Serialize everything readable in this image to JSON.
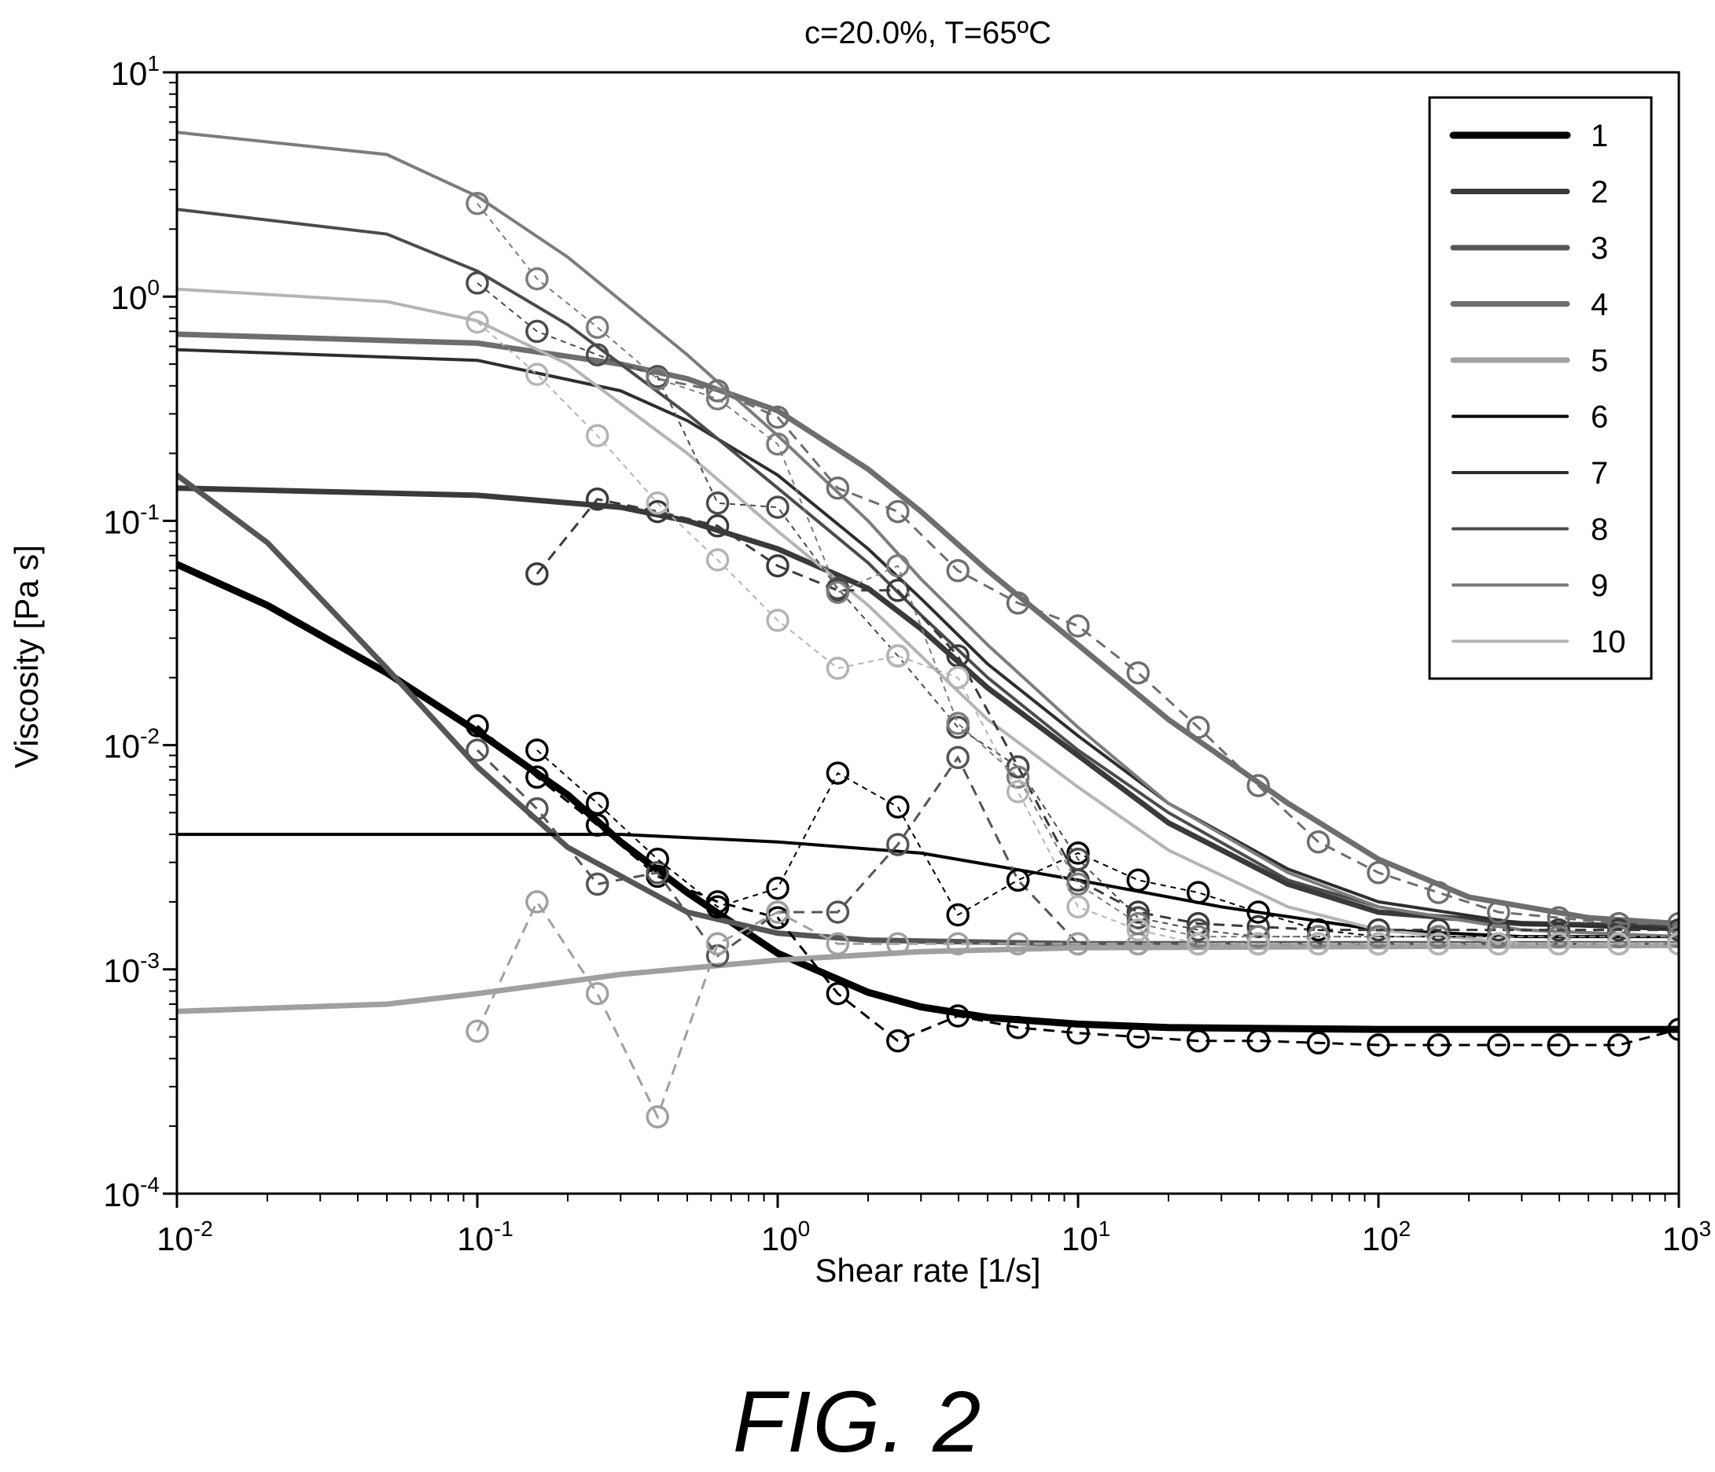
{
  "figure_caption": "FIG. 2",
  "chart_data": {
    "type": "line",
    "title": "c=20.0%, T=65ºC",
    "xlabel": "Shear rate [1/s]",
    "ylabel": "Viscosity [Pa s]",
    "x_scale": "log",
    "y_scale": "log",
    "xlim": [
      0.01,
      1000
    ],
    "ylim": [
      0.0001,
      10
    ],
    "x_ticks": [
      {
        "base": "10",
        "exp": "-2"
      },
      {
        "base": "10",
        "exp": "-1"
      },
      {
        "base": "10",
        "exp": "0"
      },
      {
        "base": "10",
        "exp": "1"
      },
      {
        "base": "10",
        "exp": "2"
      },
      {
        "base": "10",
        "exp": "3"
      }
    ],
    "y_ticks": [
      {
        "base": "10",
        "exp": "-4"
      },
      {
        "base": "10",
        "exp": "-3"
      },
      {
        "base": "10",
        "exp": "-2"
      },
      {
        "base": "10",
        "exp": "-1"
      },
      {
        "base": "10",
        "exp": "0"
      },
      {
        "base": "10",
        "exp": "1"
      }
    ],
    "grid": false,
    "legend_position": "top-right",
    "marker": "open-circle",
    "measurement_x": [
      0.1,
      0.158,
      0.251,
      0.398,
      0.631,
      1.0,
      1.585,
      2.512,
      3.981,
      6.31,
      10,
      15.85,
      25.12,
      39.81,
      63.1,
      100,
      158.5,
      251.2,
      398.1,
      631,
      1000
    ],
    "series": [
      {
        "name": "1",
        "color": "#000000",
        "fit": [
          [
            0.01,
            0.064
          ],
          [
            0.02,
            0.042
          ],
          [
            0.05,
            0.021
          ],
          [
            0.1,
            0.0115
          ],
          [
            0.2,
            0.006
          ],
          [
            0.3,
            0.0037
          ],
          [
            0.5,
            0.0022
          ],
          [
            1,
            0.00118
          ],
          [
            2,
            0.00079
          ],
          [
            3,
            0.00068
          ],
          [
            5,
            0.00061
          ],
          [
            10,
            0.00057
          ],
          [
            20,
            0.00055
          ],
          [
            100,
            0.00054
          ],
          [
            1000,
            0.00054
          ]
        ],
        "measured": [
          0.0122,
          0.0072,
          0.0044,
          0.0026,
          0.002,
          0.0017,
          0.00078,
          0.00048,
          0.00062,
          0.00055,
          0.00052,
          0.0005,
          0.00048,
          0.00048,
          0.00047,
          0.00046,
          0.00046,
          0.00046,
          0.00046,
          0.00046,
          0.00054
        ]
      },
      {
        "name": "2",
        "color": "#3a3a3a",
        "fit": [
          [
            0.01,
            0.14
          ],
          [
            0.1,
            0.13
          ],
          [
            0.3,
            0.115
          ],
          [
            0.5,
            0.1
          ],
          [
            1,
            0.075
          ],
          [
            2,
            0.05
          ],
          [
            3,
            0.033
          ],
          [
            5,
            0.018
          ],
          [
            10,
            0.009
          ],
          [
            20,
            0.0045
          ],
          [
            50,
            0.0024
          ],
          [
            100,
            0.0018
          ],
          [
            300,
            0.0016
          ],
          [
            1000,
            0.00155
          ]
        ],
        "measured": [
          null,
          0.058,
          0.125,
          0.11,
          0.095,
          0.063,
          0.049,
          0.049,
          0.025,
          0.008,
          0.0025,
          0.0018,
          0.0016,
          0.00155,
          0.0015,
          0.0015,
          0.0015,
          0.0015,
          0.0015,
          0.0015,
          0.0015
        ]
      },
      {
        "name": "3",
        "color": "#555555",
        "fit": [
          [
            0.01,
            0.16
          ],
          [
            0.02,
            0.08
          ],
          [
            0.05,
            0.022
          ],
          [
            0.1,
            0.008
          ],
          [
            0.2,
            0.0035
          ],
          [
            0.5,
            0.0018
          ],
          [
            1,
            0.00145
          ],
          [
            2,
            0.00135
          ],
          [
            10,
            0.0013
          ],
          [
            1000,
            0.0013
          ]
        ],
        "measured": [
          0.0095,
          0.0052,
          0.0024,
          0.0027,
          0.00115,
          0.0018,
          0.0018,
          0.0036,
          0.0088,
          0.0025,
          0.0013,
          0.0013,
          0.0013,
          0.0013,
          0.0013,
          0.0013,
          0.0013,
          0.0013,
          0.0013,
          0.0013,
          0.0013
        ]
      },
      {
        "name": "4",
        "color": "#6e6e6e",
        "fit": [
          [
            0.01,
            0.68
          ],
          [
            0.1,
            0.62
          ],
          [
            0.3,
            0.5
          ],
          [
            0.5,
            0.43
          ],
          [
            1,
            0.31
          ],
          [
            2,
            0.17
          ],
          [
            3,
            0.11
          ],
          [
            5,
            0.06
          ],
          [
            10,
            0.028
          ],
          [
            20,
            0.013
          ],
          [
            50,
            0.0055
          ],
          [
            100,
            0.0031
          ],
          [
            200,
            0.0021
          ],
          [
            500,
            0.0017
          ],
          [
            1000,
            0.0016
          ]
        ],
        "measured": [
          null,
          null,
          null,
          0.43,
          0.38,
          0.29,
          0.14,
          0.11,
          0.06,
          0.043,
          0.034,
          0.021,
          0.012,
          0.0066,
          0.0037,
          0.0027,
          0.0022,
          0.0018,
          0.0017,
          0.0016,
          0.0016
        ]
      },
      {
        "name": "5",
        "color": "#a0a0a0",
        "fit": [
          [
            0.01,
            0.00065
          ],
          [
            0.05,
            0.0007
          ],
          [
            0.1,
            0.00078
          ],
          [
            0.3,
            0.00095
          ],
          [
            1,
            0.0011
          ],
          [
            3,
            0.0012
          ],
          [
            10,
            0.00125
          ],
          [
            1000,
            0.00128
          ]
        ],
        "measured": [
          0.00053,
          0.002,
          0.00078,
          0.00022,
          0.0013,
          0.0018,
          0.0013,
          0.0013,
          0.0013,
          0.0013,
          0.0013,
          0.0013,
          0.0013,
          0.0013,
          0.0013,
          0.0013,
          0.0013,
          0.0013,
          0.0013,
          0.0013,
          0.0013
        ]
      },
      {
        "name": "6",
        "color": "#000000",
        "fit": [
          [
            0.01,
            0.004
          ],
          [
            0.3,
            0.004
          ],
          [
            1,
            0.0037
          ],
          [
            3,
            0.0033
          ],
          [
            10,
            0.0025
          ],
          [
            30,
            0.0019
          ],
          [
            100,
            0.0015
          ],
          [
            300,
            0.0014
          ],
          [
            1000,
            0.0014
          ]
        ],
        "measured": [
          null,
          0.0095,
          0.0055,
          0.0031,
          0.0019,
          0.0023,
          0.0075,
          0.0053,
          0.00175,
          0.0025,
          0.0033,
          0.0025,
          0.0022,
          0.0018,
          0.0015,
          0.0014,
          0.0014,
          0.0014,
          0.0014,
          0.0014,
          0.0014
        ]
      },
      {
        "name": "7",
        "color": "#2e2e2e",
        "fit": [
          [
            0.01,
            0.58
          ],
          [
            0.1,
            0.52
          ],
          [
            0.3,
            0.38
          ],
          [
            0.5,
            0.28
          ],
          [
            1,
            0.16
          ],
          [
            2,
            0.075
          ],
          [
            3,
            0.045
          ],
          [
            5,
            0.023
          ],
          [
            10,
            0.011
          ],
          [
            20,
            0.0055
          ],
          [
            50,
            0.0028
          ],
          [
            100,
            0.002
          ],
          [
            300,
            0.0016
          ],
          [
            1000,
            0.0015
          ]
        ],
        "measured": [
          null,
          null,
          null,
          null,
          null,
          null,
          null,
          null,
          null,
          null,
          null,
          null,
          null,
          null,
          null,
          null,
          null,
          null,
          null,
          null,
          null
        ]
      },
      {
        "name": "8",
        "color": "#4b4b4b",
        "fit": [
          [
            0.01,
            2.45
          ],
          [
            0.05,
            1.9
          ],
          [
            0.1,
            1.3
          ],
          [
            0.2,
            0.75
          ],
          [
            0.5,
            0.3
          ],
          [
            1,
            0.14
          ],
          [
            2,
            0.065
          ],
          [
            3,
            0.038
          ],
          [
            5,
            0.02
          ],
          [
            10,
            0.0095
          ],
          [
            20,
            0.005
          ],
          [
            50,
            0.0025
          ],
          [
            100,
            0.0019
          ],
          [
            300,
            0.0015
          ],
          [
            1000,
            0.0014
          ]
        ],
        "measured": [
          1.15,
          0.7,
          0.55,
          0.44,
          0.12,
          0.115,
          0.05,
          0.025,
          0.012,
          0.008,
          0.0031,
          0.0017,
          0.0015,
          0.0014,
          0.0014,
          0.0014,
          0.0014,
          0.0014,
          0.0014,
          0.0014,
          0.0014
        ]
      },
      {
        "name": "9",
        "color": "#7c7c7c",
        "fit": [
          [
            0.01,
            5.4
          ],
          [
            0.05,
            4.3
          ],
          [
            0.1,
            2.8
          ],
          [
            0.2,
            1.5
          ],
          [
            0.5,
            0.55
          ],
          [
            1,
            0.24
          ],
          [
            2,
            0.1
          ],
          [
            3,
            0.055
          ],
          [
            5,
            0.028
          ],
          [
            10,
            0.012
          ],
          [
            20,
            0.0055
          ],
          [
            50,
            0.0027
          ],
          [
            100,
            0.0019
          ],
          [
            300,
            0.0015
          ],
          [
            1000,
            0.0014
          ]
        ],
        "measured": [
          2.6,
          1.2,
          0.73,
          0.43,
          0.35,
          0.22,
          0.048,
          0.063,
          0.0125,
          0.0072,
          0.0024,
          0.0016,
          0.0014,
          0.0014,
          0.0014,
          0.0014,
          0.0014,
          0.0014,
          0.0014,
          0.0014,
          0.0014
        ]
      },
      {
        "name": "10",
        "color": "#b4b4b4",
        "fit": [
          [
            0.01,
            1.08
          ],
          [
            0.05,
            0.95
          ],
          [
            0.1,
            0.78
          ],
          [
            0.2,
            0.5
          ],
          [
            0.5,
            0.2
          ],
          [
            1,
            0.09
          ],
          [
            2,
            0.042
          ],
          [
            3,
            0.025
          ],
          [
            5,
            0.013
          ],
          [
            10,
            0.0065
          ],
          [
            20,
            0.0034
          ],
          [
            50,
            0.0019
          ],
          [
            100,
            0.0015
          ],
          [
            300,
            0.0013
          ],
          [
            1000,
            0.0013
          ]
        ],
        "measured": [
          0.77,
          0.45,
          0.24,
          0.12,
          0.067,
          0.036,
          0.022,
          0.025,
          0.02,
          0.0062,
          0.0019,
          0.0015,
          0.0013,
          0.0013,
          0.0013,
          0.0013,
          0.0013,
          0.0013,
          0.0013,
          0.0013,
          0.0013
        ]
      }
    ]
  }
}
